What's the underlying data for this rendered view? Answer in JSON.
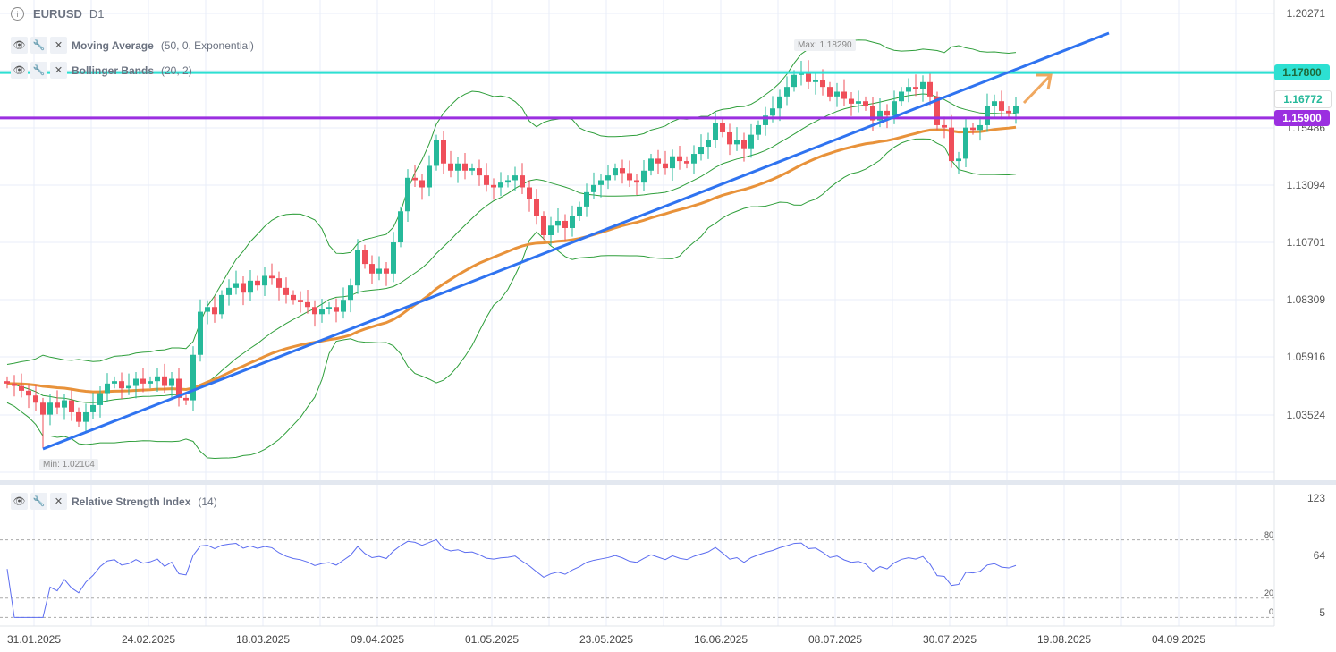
{
  "header": {
    "symbol": "EURUSD",
    "timeframe": "D1"
  },
  "indicators": [
    {
      "name": "Moving Average",
      "params": "(50, 0, Exponential)"
    },
    {
      "name": "Bollinger Bands",
      "params": "(20, 2)"
    }
  ],
  "rsi": {
    "name": "Relative Strength Index",
    "params": "(14)",
    "axis": [
      "123",
      "64",
      "5"
    ],
    "levels": [
      "80",
      "20",
      "0"
    ]
  },
  "price_axis": [
    "1.20271",
    "1.15486",
    "1.13094",
    "1.10701",
    "1.08309",
    "1.05916",
    "1.03524"
  ],
  "tags": {
    "resistance": "1.17800",
    "current": "1.16772",
    "support": "1.15900"
  },
  "max_label": "Max: 1.18290",
  "min_label": "Min: 1.02104",
  "dates": [
    "31.01.2025",
    "24.02.2025",
    "18.03.2025",
    "09.04.2025",
    "01.05.2025",
    "23.05.2025",
    "16.06.2025",
    "08.07.2025",
    "30.07.2025",
    "19.08.2025",
    "04.09.2025"
  ],
  "colors": {
    "up": "#26b99a",
    "down": "#ef4f5a",
    "ema": "#e8923a",
    "bb": "#2e9e3a",
    "trend": "#2f73f0",
    "res": "#2de0d2",
    "sup": "#9b2fe0",
    "rsi": "#5b6cf0"
  },
  "chart_data": {
    "type": "candlestick",
    "closes": [
      1.048,
      1.047,
      1.045,
      1.043,
      1.04,
      1.035,
      1.04,
      1.038,
      1.041,
      1.036,
      1.032,
      1.036,
      1.039,
      1.044,
      1.048,
      1.049,
      1.046,
      1.047,
      1.05,
      1.048,
      1.049,
      1.051,
      1.047,
      1.05,
      1.042,
      1.041,
      1.06,
      1.078,
      1.08,
      1.077,
      1.085,
      1.088,
      1.09,
      1.086,
      1.091,
      1.089,
      1.093,
      1.092,
      1.088,
      1.085,
      1.083,
      1.082,
      1.08,
      1.077,
      1.079,
      1.08,
      1.078,
      1.083,
      1.089,
      1.104,
      1.098,
      1.094,
      1.096,
      1.094,
      1.107,
      1.12,
      1.134,
      1.133,
      1.13,
      1.139,
      1.15,
      1.14,
      1.137,
      1.14,
      1.137,
      1.138,
      1.135,
      1.131,
      1.13,
      1.132,
      1.133,
      1.135,
      1.13,
      1.125,
      1.118,
      1.11,
      1.114,
      1.116,
      1.113,
      1.118,
      1.122,
      1.128,
      1.131,
      1.133,
      1.135,
      1.138,
      1.136,
      1.133,
      1.132,
      1.137,
      1.142,
      1.14,
      1.138,
      1.143,
      1.141,
      1.14,
      1.144,
      1.147,
      1.15,
      1.157,
      1.153,
      1.148,
      1.15,
      1.146,
      1.152,
      1.156,
      1.16,
      1.163,
      1.168,
      1.172,
      1.177,
      1.178,
      1.174,
      1.175,
      1.172,
      1.168,
      1.17,
      1.167,
      1.165,
      1.166,
      1.164,
      1.158,
      1.162,
      1.16,
      1.166,
      1.17,
      1.172,
      1.171,
      1.174,
      1.168,
      1.156,
      1.155,
      1.141,
      1.142,
      1.155,
      1.154,
      1.156,
      1.164,
      1.166,
      1.162,
      1.161,
      1.164
    ],
    "horizontal_levels": [
      1.178,
      1.159
    ],
    "max": 1.1829,
    "min": 1.02104,
    "ylim": [
      1.01,
      1.2027
    ]
  }
}
